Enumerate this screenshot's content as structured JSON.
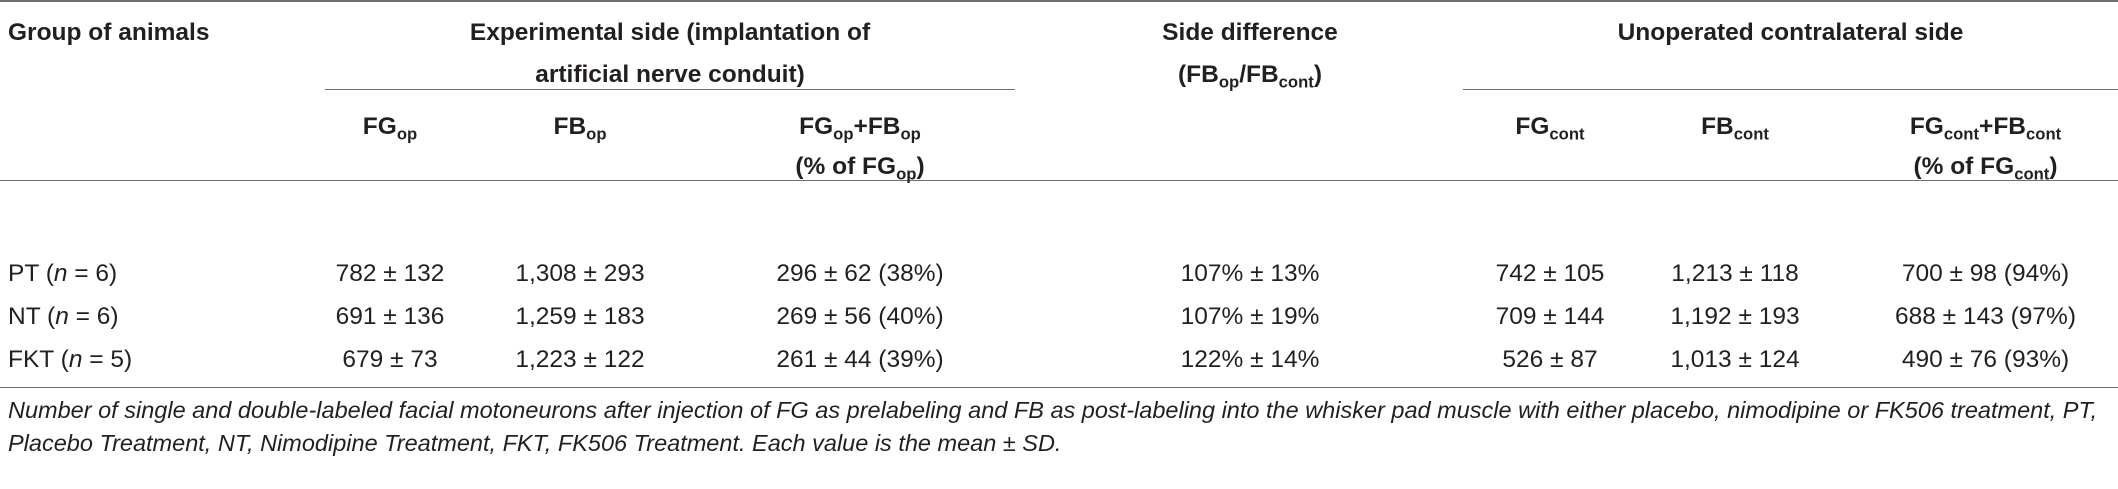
{
  "headers": {
    "group": "Group of animals",
    "experimental_line1": "Experimental side (implantation of",
    "experimental_line2": "artificial nerve conduit)",
    "side_diff_line1": "Side difference",
    "side_diff_line2": {
      "a": "(FB",
      "a_sub": "op",
      "b": "/FB",
      "b_sub": "cont",
      "c": ")"
    },
    "unoperated": "Unoperated contralateral side"
  },
  "subheaders": {
    "fg_op": {
      "main": "FG",
      "sub": "op"
    },
    "fb_op": {
      "main": "FB",
      "sub": "op"
    },
    "fgfb_op": {
      "m1": "FG",
      "s1": "op",
      "m2": "+FB",
      "s2": "op",
      "l2a": "(% of FG",
      "l2s": "op",
      "l2b": ")"
    },
    "fg_cont": {
      "main": "FG",
      "sub": "cont"
    },
    "fb_cont": {
      "main": "FB",
      "sub": "cont"
    },
    "fgfb_cont": {
      "m1": "FG",
      "s1": "cont",
      "m2": "+FB",
      "s2": "cont",
      "l2a": "(% of FG",
      "l2s": "cont",
      "l2b": ")"
    }
  },
  "rows": [
    {
      "group": "PT",
      "n_pre": "(",
      "n_var": "n",
      "n_post": " = 6)",
      "fg_op": "782 ± 132",
      "fb_op": "1,308 ± 293",
      "fgfb_op": "296 ± 62 (38%)",
      "side_diff": "107% ± 13%",
      "fg_cont": "742 ± 105",
      "fb_cont": "1,213 ± 118",
      "fgfb_cont": "700 ± 98 (94%)"
    },
    {
      "group": "NT",
      "n_pre": "(",
      "n_var": "n",
      "n_post": " = 6)",
      "fg_op": "691 ± 136",
      "fb_op": "1,259 ± 183",
      "fgfb_op": "269 ± 56 (40%)",
      "side_diff": "107% ± 19%",
      "fg_cont": "709 ± 144",
      "fb_cont": "1,192 ± 193",
      "fgfb_cont": "688 ± 143 (97%)"
    },
    {
      "group": "FKT",
      "n_pre": "(",
      "n_var": "n",
      "n_post": " = 5)",
      "fg_op": "679 ± 73",
      "fb_op": "1,223 ± 122",
      "fgfb_op": "261 ± 44 (39%)",
      "side_diff": "122% ± 14%",
      "fg_cont": "526 ± 87",
      "fb_cont": "1,013 ± 124",
      "fgfb_cont": "490 ± 76 (93%)"
    }
  ],
  "footnote": "Number of single and double-labeled facial motoneurons after injection of FG as prelabeling and FB as post-labeling into the whisker pad muscle with either placebo, nimodipine or FK506 treatment, PT, Placebo Treatment, NT, Nimodipine Treatment, FKT, FK506 Treatment. Each value is the mean ± SD."
}
